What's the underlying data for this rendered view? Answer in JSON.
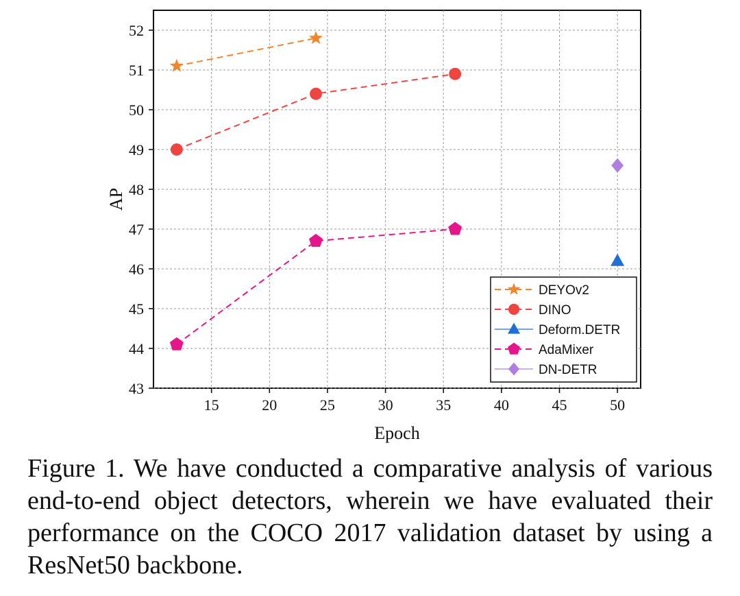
{
  "chart_data": {
    "type": "line",
    "title": "",
    "xlabel": "Epoch",
    "ylabel": "AP",
    "xlim": [
      10,
      52
    ],
    "ylim": [
      43,
      52.5
    ],
    "xticks": [
      15,
      20,
      25,
      30,
      35,
      40,
      45,
      50
    ],
    "yticks": [
      43,
      44,
      45,
      46,
      47,
      48,
      49,
      50,
      51,
      52
    ],
    "grid": true,
    "legend_position": "bottom-right",
    "series": [
      {
        "name": "DEYOv2",
        "color": "#f0862e",
        "marker": "star",
        "line": "dashed",
        "x": [
          12,
          24
        ],
        "y": [
          51.1,
          51.8
        ]
      },
      {
        "name": "DINO",
        "color": "#ef4440",
        "marker": "circle",
        "line": "dashed",
        "x": [
          12,
          24,
          36
        ],
        "y": [
          49.0,
          50.4,
          50.9
        ]
      },
      {
        "name": "Deform.DETR",
        "color": "#1f6fd6",
        "marker": "triangle",
        "line": "solid",
        "x": [
          50
        ],
        "y": [
          46.2
        ]
      },
      {
        "name": "AdaMixer",
        "color": "#e5168c",
        "marker": "pentagon",
        "line": "dashed",
        "x": [
          12,
          24,
          36
        ],
        "y": [
          44.1,
          46.7,
          47.0
        ]
      },
      {
        "name": "DN-DETR",
        "color": "#b07ee0",
        "marker": "diamond",
        "line": "solid",
        "x": [
          50
        ],
        "y": [
          48.6
        ]
      }
    ]
  },
  "caption": "Figure 1. We have conducted a comparative analysis of various end-to-end object detectors, wherein we have evaluated their performance on the COCO 2017 validation dataset by using a ResNet50 backbone."
}
